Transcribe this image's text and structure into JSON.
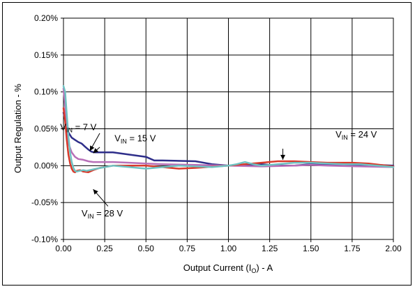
{
  "chart_data": {
    "type": "line",
    "xlabel_main": "Output Current (I",
    "xlabel_sub": "O",
    "xlabel_tail": ") - A",
    "ylabel": "Output Regulation - %",
    "xlim": [
      0,
      2.0
    ],
    "ylim": [
      -0.1,
      0.2
    ],
    "x_ticks": [
      0.0,
      0.25,
      0.5,
      0.75,
      1.0,
      1.25,
      1.5,
      1.75,
      2.0
    ],
    "x_tick_labels": [
      "0.00",
      "0.25",
      "0.50",
      "0.75",
      "1.00",
      "1.25",
      "1.50",
      "1.75",
      "2.00"
    ],
    "y_ticks": [
      -0.1,
      -0.05,
      0.0,
      0.05,
      0.1,
      0.15,
      0.2
    ],
    "y_tick_labels": [
      "-0.10%",
      "-0.05%",
      "0.00%",
      "0.05%",
      "0.10%",
      "0.15%",
      "0.20%"
    ],
    "grid": true,
    "series": [
      {
        "name": "VIN = 7 V",
        "color": "#2e2e8a",
        "x": [
          0.0,
          0.01,
          0.02,
          0.03,
          0.05,
          0.07,
          0.09,
          0.11,
          0.13,
          0.15,
          0.17,
          0.19,
          0.22,
          0.3,
          0.4,
          0.5,
          0.55,
          0.6,
          0.8,
          0.9,
          1.0,
          1.1,
          1.2,
          1.3,
          1.4,
          1.5,
          1.6,
          1.7,
          1.8,
          1.9,
          2.0
        ],
        "y": [
          0.072,
          0.062,
          0.052,
          0.045,
          0.038,
          0.035,
          0.032,
          0.03,
          0.026,
          0.022,
          0.019,
          0.018,
          0.018,
          0.018,
          0.015,
          0.012,
          0.007,
          0.007,
          0.006,
          0.002,
          0.0,
          0.001,
          0.002,
          0.0,
          0.0,
          0.002,
          0.001,
          0.0,
          0.0,
          0.001,
          0.0
        ]
      },
      {
        "name": "VIN = 15 V",
        "color": "#b86fb8",
        "x": [
          0.0,
          0.01,
          0.02,
          0.03,
          0.05,
          0.07,
          0.09,
          0.12,
          0.15,
          0.18,
          0.22,
          0.3,
          0.4,
          0.5,
          0.6,
          0.8,
          1.0,
          1.2,
          1.4,
          1.5,
          1.6,
          1.8,
          2.0
        ],
        "y": [
          0.105,
          0.08,
          0.05,
          0.03,
          0.018,
          0.012,
          0.009,
          0.008,
          0.006,
          0.005,
          0.005,
          0.005,
          0.004,
          0.003,
          0.002,
          0.001,
          0.0,
          -0.001,
          0.0,
          0.001,
          0.0,
          -0.001,
          -0.002
        ]
      },
      {
        "name": "VIN = 24 V",
        "color": "#d93a2b",
        "x": [
          0.0,
          0.01,
          0.02,
          0.03,
          0.04,
          0.05,
          0.06,
          0.07,
          0.08,
          0.1,
          0.12,
          0.15,
          0.18,
          0.22,
          0.3,
          0.5,
          0.6,
          0.7,
          0.8,
          1.0,
          1.2,
          1.3,
          1.4,
          1.5,
          1.6,
          1.75,
          1.85,
          2.0
        ],
        "y": [
          0.078,
          0.06,
          0.035,
          0.015,
          0.003,
          -0.004,
          -0.008,
          -0.009,
          -0.007,
          -0.006,
          -0.008,
          -0.009,
          -0.006,
          -0.003,
          0.0,
          0.0,
          -0.002,
          -0.004,
          -0.003,
          0.0,
          0.004,
          0.006,
          0.006,
          0.005,
          0.004,
          0.004,
          0.003,
          -0.001
        ]
      },
      {
        "name": "VIN = 28 V",
        "color": "#6fc2c2",
        "x": [
          0.0,
          0.01,
          0.02,
          0.03,
          0.04,
          0.05,
          0.06,
          0.07,
          0.08,
          0.1,
          0.12,
          0.14,
          0.16,
          0.2,
          0.25,
          0.3,
          0.4,
          0.5,
          0.6,
          0.7,
          0.8,
          0.9,
          1.0,
          1.05,
          1.1,
          1.15,
          1.2,
          1.3,
          1.4,
          1.5,
          1.6,
          1.7,
          1.8,
          1.9,
          2.0
        ],
        "y": [
          0.108,
          0.1,
          0.07,
          0.04,
          0.018,
          0.005,
          -0.003,
          -0.007,
          -0.008,
          -0.007,
          -0.006,
          -0.007,
          -0.006,
          -0.004,
          -0.002,
          0.0,
          -0.002,
          -0.004,
          -0.002,
          0.0,
          -0.001,
          -0.002,
          0.0,
          0.002,
          0.005,
          0.002,
          0.0,
          0.002,
          0.004,
          0.004,
          0.003,
          0.002,
          0.002,
          0.0,
          -0.002
        ]
      }
    ],
    "annotations": [
      {
        "label": "V",
        "sub": "IN",
        "tail": " = 7 V",
        "tx": 0.2,
        "ty": 0.048
      },
      {
        "label": "V",
        "sub": "IN",
        "tail": " = 15 V",
        "tx": 0.56,
        "ty": 0.033
      },
      {
        "label": "V",
        "sub": "IN",
        "tail": " = 24 V",
        "tx": 1.9,
        "ty": 0.038
      },
      {
        "label": "V",
        "sub": "IN",
        "tail": " = 28 V",
        "tx": 0.36,
        "ty": -0.069
      }
    ],
    "arrows": [
      {
        "from": [
          0.22,
          0.044
        ],
        "to": [
          0.16,
          0.02
        ]
      },
      {
        "from": [
          0.22,
          0.025
        ],
        "to": [
          0.18,
          0.017
        ]
      },
      {
        "from": [
          1.33,
          0.023
        ],
        "to": [
          1.33,
          0.008
        ]
      },
      {
        "from": [
          0.27,
          -0.055
        ],
        "to": [
          0.18,
          -0.032
        ]
      }
    ]
  }
}
